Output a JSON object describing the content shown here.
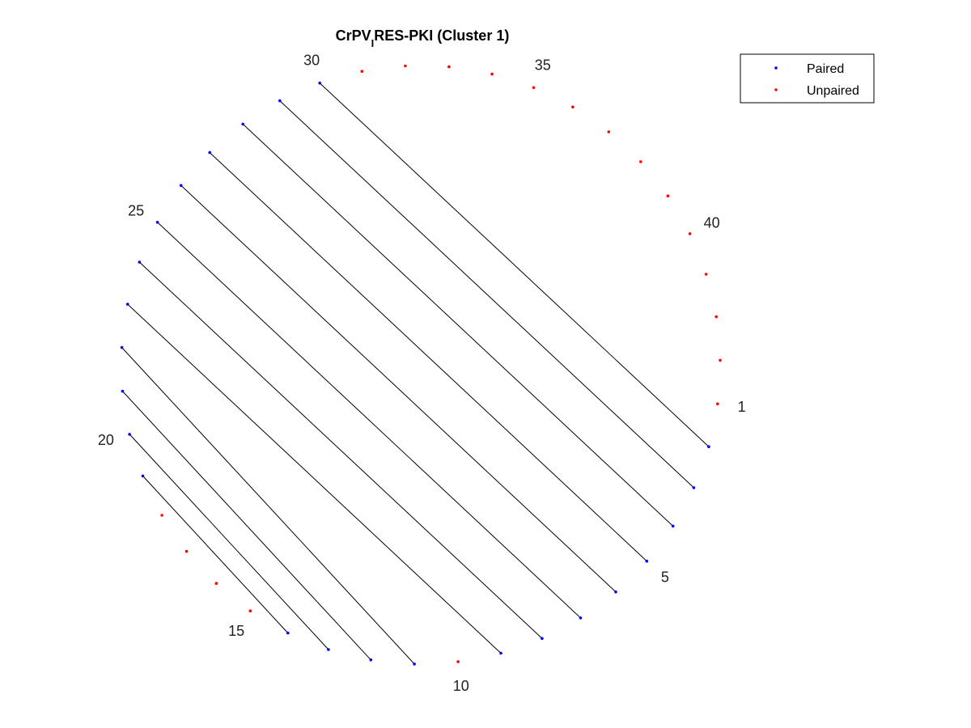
{
  "chart_data": {
    "type": "scatter",
    "title": {
      "main": "CrPV",
      "subscript": "I",
      "rest": "RES-PKI (Cluster 1)"
    },
    "sequence_length": 43,
    "position_labels": [
      "1",
      "5",
      "10",
      "15",
      "20",
      "25",
      "30",
      "35",
      "40"
    ],
    "labeled_positions": [
      1,
      5,
      10,
      15,
      20,
      25,
      30,
      35,
      40
    ],
    "pairs": [
      [
        2,
        30
      ],
      [
        3,
        29
      ],
      [
        4,
        28
      ],
      [
        5,
        27
      ],
      [
        6,
        26
      ],
      [
        7,
        25
      ],
      [
        8,
        24
      ],
      [
        9,
        23
      ],
      [
        11,
        22
      ],
      [
        12,
        21
      ],
      [
        13,
        20
      ],
      [
        14,
        19
      ]
    ],
    "unpaired": [
      1,
      10,
      15,
      16,
      17,
      18,
      31,
      32,
      33,
      34,
      35,
      36,
      37,
      38,
      39,
      40,
      41,
      42,
      43
    ],
    "series": [
      {
        "name": "Paired",
        "color": "#0000ff"
      },
      {
        "name": "Unpaired",
        "color": "#ff0000"
      }
    ],
    "line_color": "#000000",
    "legend_position": "top-right"
  }
}
